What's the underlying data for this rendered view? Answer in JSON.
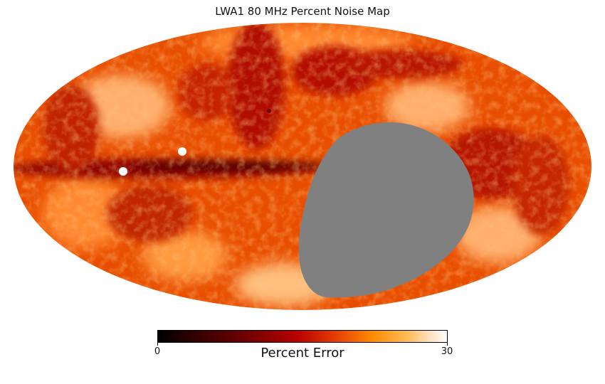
{
  "title": "LWA1 80 MHz Percent Noise Map",
  "map": {
    "projection": "mollweide",
    "masked_region_color": "#808080",
    "background_color": "#ffffff"
  },
  "colorbar": {
    "label": "Percent Error",
    "min_label": "0",
    "max_label": "30",
    "colormap": "gist_heat"
  }
}
